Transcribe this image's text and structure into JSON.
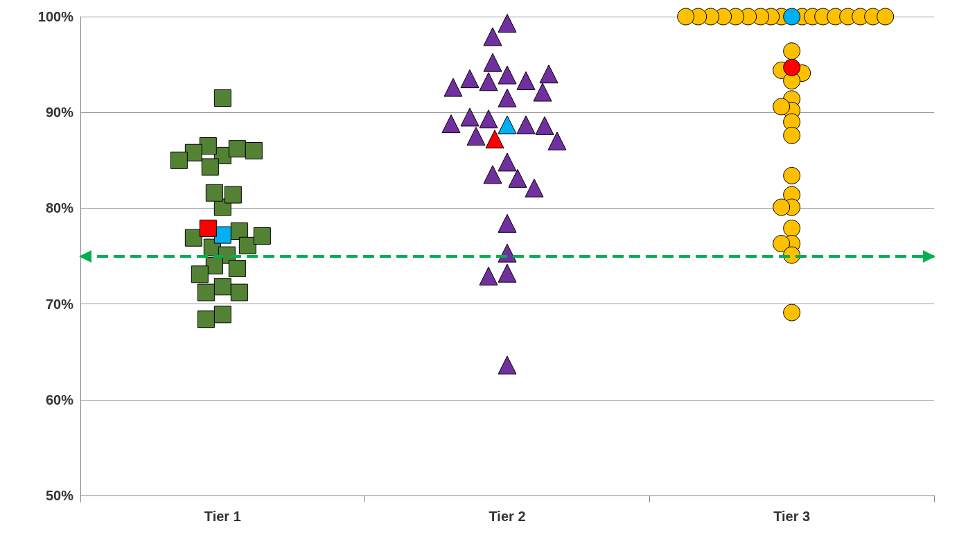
{
  "chart_data": {
    "type": "scatter",
    "categories": [
      "Tier 1",
      "Tier 2",
      "Tier 3"
    ],
    "ylim": [
      50,
      100
    ],
    "yticks": [
      {
        "value": 50,
        "label": "50%"
      },
      {
        "value": 60,
        "label": "60%"
      },
      {
        "value": 70,
        "label": "70%"
      },
      {
        "value": 80,
        "label": "80%"
      },
      {
        "value": 90,
        "label": "90%"
      },
      {
        "value": 100,
        "label": "100%"
      }
    ],
    "grid": "y",
    "series": [
      {
        "color": "#548235",
        "marker": "square",
        "x": [
          "Tier 1",
          "Tier 1",
          "Tier 1",
          "Tier 1",
          "Tier 1",
          "Tier 1",
          "Tier 1",
          "Tier 1",
          "Tier 1",
          "Tier 1",
          "Tier 1",
          "Tier 1",
          "Tier 1",
          "Tier 1",
          "Tier 1",
          "Tier 1",
          "Tier 1",
          "Tier 1",
          "Tier 1",
          "Tier 1",
          "Tier 1",
          "Tier 1",
          "Tier 1",
          "Tier 1",
          "Tier 1"
        ],
        "values": [
          91.5,
          85.5,
          80.1,
          86.5,
          86.2,
          85.8,
          86.0,
          84.3,
          85.0,
          81.6,
          81.4,
          77.6,
          76.9,
          75.9,
          76.1,
          77.1,
          75.1,
          74.0,
          73.7,
          73.1,
          71.8,
          71.2,
          71.2,
          68.9,
          68.4
        ]
      },
      {
        "color": "#00b0f0",
        "marker": "square",
        "x": [
          "Tier 1"
        ],
        "values": [
          77.2
        ]
      },
      {
        "color": "#ff0000",
        "marker": "square",
        "x": [
          "Tier 1"
        ],
        "values": [
          77.9
        ]
      },
      {
        "color": "#7030a0",
        "marker": "triangle",
        "x": [
          "Tier 2",
          "Tier 2",
          "Tier 2",
          "Tier 2",
          "Tier 2",
          "Tier 2",
          "Tier 2",
          "Tier 2",
          "Tier 2",
          "Tier 2",
          "Tier 2",
          "Tier 2",
          "Tier 2",
          "Tier 2",
          "Tier 2",
          "Tier 2",
          "Tier 2",
          "Tier 2",
          "Tier 2",
          "Tier 2",
          "Tier 2",
          "Tier 2",
          "Tier 2",
          "Tier 2",
          "Tier 2",
          "Tier 2",
          "Tier 2"
        ],
        "values": [
          99.0,
          97.6,
          93.6,
          92.9,
          93.0,
          94.9,
          93.2,
          91.8,
          91.2,
          92.3,
          93.7,
          89.0,
          88.4,
          89.2,
          88.3,
          88.5,
          87.2,
          86.7,
          84.5,
          83.2,
          82.8,
          81.8,
          78.1,
          75.0,
          72.9,
          72.6,
          63.3
        ]
      },
      {
        "color": "#00b0f0",
        "marker": "triangle",
        "x": [
          "Tier 2"
        ],
        "values": [
          88.4
        ]
      },
      {
        "color": "#ff0000",
        "marker": "triangle",
        "x": [
          "Tier 2"
        ],
        "values": [
          86.9
        ]
      },
      {
        "color": "#ffc000",
        "marker": "circle",
        "x": [
          "Tier 3",
          "Tier 3",
          "Tier 3",
          "Tier 3",
          "Tier 3",
          "Tier 3",
          "Tier 3",
          "Tier 3",
          "Tier 3",
          "Tier 3",
          "Tier 3",
          "Tier 3",
          "Tier 3",
          "Tier 3",
          "Tier 3",
          "Tier 3",
          "Tier 3",
          "Tier 3",
          "Tier 3",
          "Tier 3",
          "Tier 3",
          "Tier 3",
          "Tier 3",
          "Tier 3",
          "Tier 3",
          "Tier 3",
          "Tier 3",
          "Tier 3",
          "Tier 3",
          "Tier 3",
          "Tier 3",
          "Tier 3",
          "Tier 3",
          "Tier 3",
          "Tier 3"
        ],
        "values": [
          100,
          100,
          100,
          100,
          100,
          100,
          100,
          100,
          100,
          100,
          100,
          100,
          100,
          100,
          100,
          100,
          100,
          96.4,
          94.4,
          94.1,
          93.3,
          91.4,
          90.2,
          90.6,
          89.0,
          87.6,
          83.4,
          81.4,
          80.1,
          80.1,
          77.9,
          76.3,
          76.3,
          75.1,
          69.1
        ]
      },
      {
        "color": "#00b0f0",
        "marker": "circle",
        "x": [
          "Tier 3"
        ],
        "values": [
          100
        ]
      },
      {
        "color": "#ff0000",
        "marker": "circle",
        "x": [
          "Tier 3"
        ],
        "values": [
          94.7
        ]
      }
    ],
    "ref_lines": [
      {
        "axis": "y",
        "value": 75,
        "color": "#00b050",
        "line_style": "dashed"
      }
    ]
  }
}
